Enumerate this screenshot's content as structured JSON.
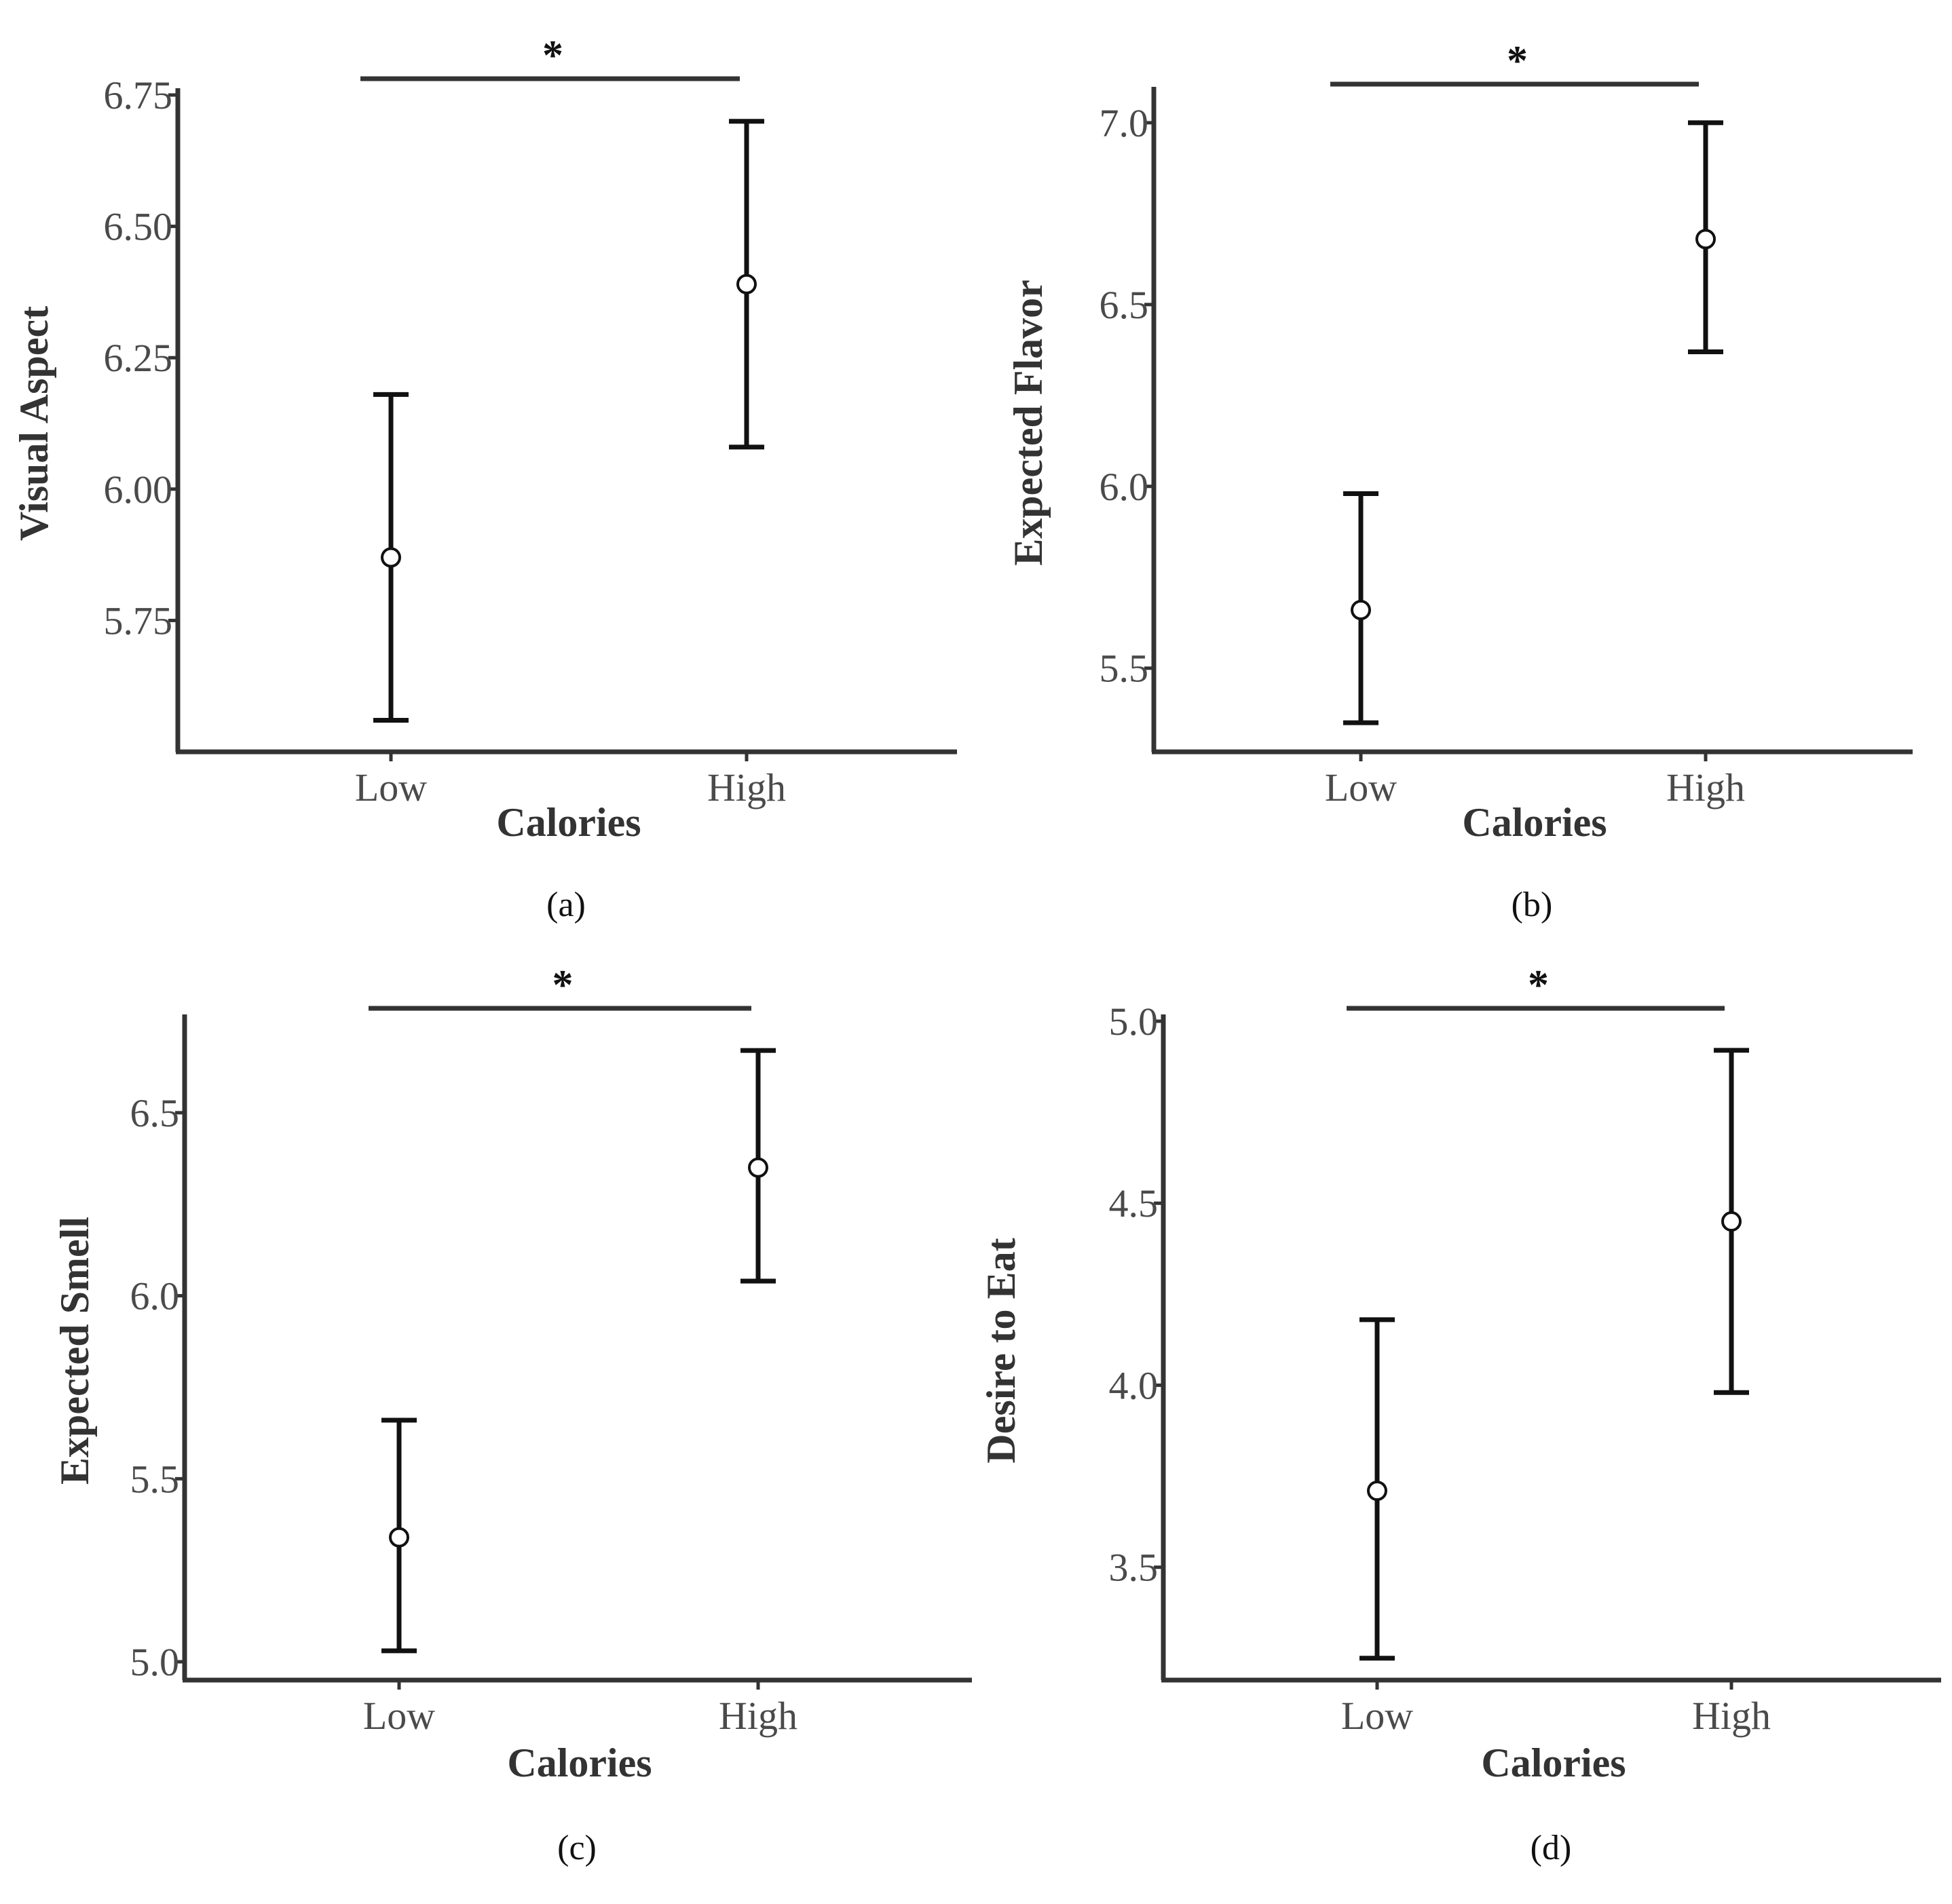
{
  "chart_data": [
    {
      "type": "errorbar",
      "panel_label": "(a)",
      "xlabel": "Calories",
      "ylabel": "Visual Aspect",
      "categories": [
        "Low",
        "High"
      ],
      "means": [
        5.87,
        6.39
      ],
      "lower": [
        5.56,
        6.08
      ],
      "upper": [
        6.18,
        6.7
      ],
      "yticks": [
        5.75,
        6.0,
        6.25,
        6.5,
        6.75
      ],
      "ytick_labels": [
        "5.75",
        "6.00",
        "6.25",
        "6.50",
        "6.75"
      ],
      "ylim": [
        5.5,
        6.75
      ],
      "significance": {
        "between": [
          "Low",
          "High"
        ],
        "marker": "*"
      }
    },
    {
      "type": "errorbar",
      "panel_label": "(b)",
      "xlabel": "Calories",
      "ylabel": "Expected Flavor",
      "categories": [
        "Low",
        "High"
      ],
      "means": [
        5.66,
        6.68
      ],
      "lower": [
        5.35,
        6.37
      ],
      "upper": [
        5.98,
        7.0
      ],
      "yticks": [
        5.5,
        6.0,
        6.5,
        7.0
      ],
      "ytick_labels": [
        "5.5",
        "6.0",
        "6.5",
        "7.0"
      ],
      "ylim": [
        5.27,
        7.08
      ],
      "significance": {
        "between": [
          "Low",
          "High"
        ],
        "marker": "*"
      }
    },
    {
      "type": "errorbar",
      "panel_label": "(c)",
      "xlabel": "Calories",
      "ylabel": "Expected Smell",
      "categories": [
        "Low",
        "High"
      ],
      "means": [
        5.34,
        6.35
      ],
      "lower": [
        5.03,
        6.04
      ],
      "upper": [
        5.66,
        6.67
      ],
      "yticks": [
        5.0,
        5.5,
        6.0,
        6.5
      ],
      "ytick_labels": [
        "5.0",
        "5.5",
        "6.0",
        "6.5"
      ],
      "ylim": [
        4.95,
        6.75
      ],
      "significance": {
        "between": [
          "Low",
          "High"
        ],
        "marker": "*"
      }
    },
    {
      "type": "errorbar",
      "panel_label": "(d)",
      "xlabel": "Calories",
      "ylabel": "Desire to Eat",
      "categories": [
        "Low",
        "High"
      ],
      "means": [
        3.71,
        4.45
      ],
      "lower": [
        3.25,
        3.98
      ],
      "upper": [
        4.18,
        4.92
      ],
      "yticks": [
        3.5,
        4.0,
        4.5,
        5.0
      ],
      "ytick_labels": [
        "3.5",
        "4.0",
        "4.5",
        "5.0"
      ],
      "ylim": [
        3.19,
        5.0
      ],
      "significance": {
        "between": [
          "Low",
          "High"
        ],
        "marker": "*"
      }
    }
  ]
}
